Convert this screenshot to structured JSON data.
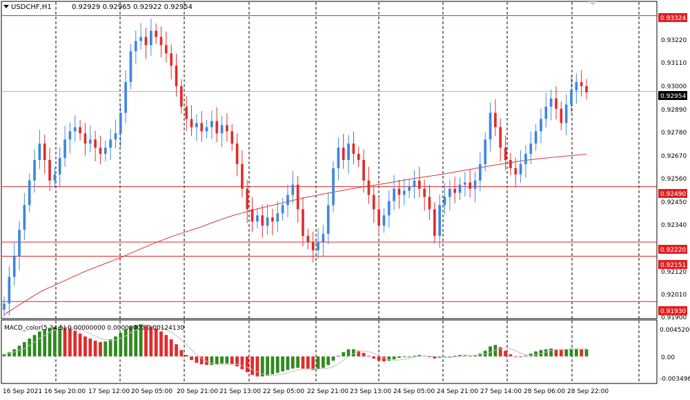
{
  "header": {
    "symbol": "USDCHF,H1",
    "quote": "0.92929 0.92965 0.92922 0.92954"
  },
  "macd_label": "MACD_color(5,34,5) 0.00000000 0.00000000 0.00124130",
  "price_axis": {
    "ticks": [
      "0.93220",
      "0.93110",
      "0.93000",
      "0.92890",
      "0.92780",
      "0.92670",
      "0.92560",
      "0.92450",
      "0.92340",
      "0.92120",
      "0.92010",
      "0.91900"
    ],
    "level_tags": [
      "0.93324",
      "0.92490",
      "0.92220",
      "0.92151",
      "0.91930"
    ],
    "current_tag": "0.92954"
  },
  "macd_axis": {
    "ticks": [
      "0.0045206",
      "0.00",
      "-0.003496"
    ]
  },
  "time_axis": {
    "labels": [
      "16 Sep 2021",
      "16 Sep 20:00",
      "17 Sep 12:00",
      "20 Sep 05:00",
      "20 Sep 21:00",
      "21 Sep 13:00",
      "22 Sep 05:00",
      "22 Sep 21:00",
      "23 Sep 13:00",
      "24 Sep 05:00",
      "24 Sep 21:00",
      "27 Sep 14:00",
      "28 Sep 06:00",
      "28 Sep 22:00"
    ]
  },
  "colors": {
    "bull": "#3d86e0",
    "bear": "#e02c2c",
    "level_line": "#e02020",
    "ma_line": "#e03030",
    "current_line": "#b0b0b0",
    "macd_positive": "#2e8b1e",
    "macd_negative": "#e02c2c",
    "grid": "#000000"
  },
  "chart_data": {
    "type": "candlestick",
    "symbol": "USDCHF",
    "timeframe": "H1",
    "y_range": [
      0.9185,
      0.9339
    ],
    "horizontal_levels": [
      0.93324,
      0.9249,
      0.9222,
      0.92151,
      0.9193
    ],
    "current_price": 0.92954,
    "closes": [
      0.9192,
      0.9205,
      0.9215,
      0.9228,
      0.924,
      0.9252,
      0.9262,
      0.927,
      0.9262,
      0.9252,
      0.9255,
      0.9263,
      0.9272,
      0.9276,
      0.9278,
      0.9275,
      0.927,
      0.9272,
      0.9268,
      0.9265,
      0.9268,
      0.9272,
      0.9275,
      0.9285,
      0.93,
      0.9315,
      0.932,
      0.9322,
      0.9318,
      0.9325,
      0.9322,
      0.9318,
      0.9314,
      0.9308,
      0.9298,
      0.9288,
      0.9282,
      0.9278,
      0.928,
      0.9276,
      0.9278,
      0.9281,
      0.9275,
      0.9279,
      0.9276,
      0.927,
      0.926,
      0.9248,
      0.9238,
      0.9232,
      0.9235,
      0.923,
      0.9234,
      0.9232,
      0.9236,
      0.924,
      0.9245,
      0.925,
      0.9238,
      0.9225,
      0.9222,
      0.9218,
      0.9222,
      0.9226,
      0.924,
      0.9258,
      0.9268,
      0.9262,
      0.927,
      0.9265,
      0.9262,
      0.9252,
      0.9245,
      0.9238,
      0.923,
      0.9235,
      0.9242,
      0.9248,
      0.9245,
      0.9247,
      0.9249,
      0.9252,
      0.9248,
      0.9244,
      0.9238,
      0.9225,
      0.924,
      0.9244,
      0.9248,
      0.9246,
      0.925,
      0.9251,
      0.9248,
      0.9252,
      0.926,
      0.9272,
      0.9285,
      0.9278,
      0.9268,
      0.9262,
      0.9258,
      0.9255,
      0.926,
      0.9265,
      0.927,
      0.9276,
      0.9282,
      0.9288,
      0.9292,
      0.9287,
      0.928,
      0.9289,
      0.9296,
      0.93,
      0.9298,
      0.9295
    ]
  },
  "macd_data": {
    "histogram": [
      0.0003,
      0.0006,
      0.001,
      0.0015,
      0.002,
      0.0025,
      0.003,
      0.0035,
      0.0038,
      0.004,
      0.0041,
      0.0042,
      0.0041,
      0.0039,
      0.0036,
      0.0032,
      0.0028,
      0.0025,
      0.0022,
      0.002,
      0.0021,
      0.0024,
      0.0028,
      0.0033,
      0.0038,
      0.0042,
      0.0044,
      0.0045,
      0.0044,
      0.0042,
      0.0039,
      0.0035,
      0.003,
      0.0024,
      0.0017,
      0.0009,
      0.0002,
      -0.0005,
      -0.0009,
      -0.0011,
      -0.0012,
      -0.0012,
      -0.0011,
      -0.001,
      -0.001,
      -0.0011,
      -0.0014,
      -0.0018,
      -0.0022,
      -0.0026,
      -0.0028,
      -0.0028,
      -0.0027,
      -0.0025,
      -0.0023,
      -0.0021,
      -0.0019,
      -0.0017,
      -0.0016,
      -0.0017,
      -0.0018,
      -0.0019,
      -0.0018,
      -0.0016,
      -0.0012,
      -0.0006,
      0.0001,
      0.0006,
      0.001,
      0.001,
      0.0008,
      0.0005,
      0.0001,
      -0.0003,
      -0.0006,
      -0.0007,
      -0.0006,
      -0.0004,
      -0.0002,
      -0.0001,
      0.0,
      0.0001,
      0.0002,
      0.0001,
      -0.0001,
      -0.0003,
      -0.0002,
      -0.0001,
      0.0,
      0.0001,
      0.0002,
      0.0002,
      0.0001,
      0.0002,
      0.0004,
      0.0008,
      0.0014,
      0.0016,
      0.0013,
      0.0008,
      0.0003,
      0.0,
      -0.0001,
      0.0001,
      0.0004,
      0.0007,
      0.0009,
      0.001,
      0.0011,
      0.001,
      0.0009,
      0.001,
      0.0011,
      0.0011,
      0.001,
      0.001
    ],
    "range": [
      -0.003496,
      0.0045206
    ]
  }
}
